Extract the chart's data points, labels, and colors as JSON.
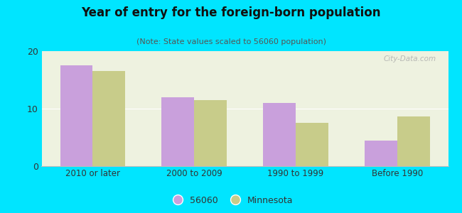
{
  "title": "Year of entry for the foreign-born population",
  "subtitle": "(Note: State values scaled to 56060 population)",
  "categories": [
    "2010 or later",
    "2000 to 2009",
    "1990 to 1999",
    "Before 1990"
  ],
  "values_56060": [
    17.5,
    12.0,
    11.0,
    4.5
  ],
  "values_mn": [
    16.5,
    11.5,
    7.5,
    8.7
  ],
  "color_56060": "#c9a0dc",
  "color_mn": "#c8cc8a",
  "ylim": [
    0,
    20
  ],
  "yticks": [
    0,
    10,
    20
  ],
  "background_outer": "#00e5ff",
  "background_inner": "#eef2e0",
  "bar_width": 0.32,
  "legend_label_56060": "56060",
  "legend_label_mn": "Minnesota",
  "watermark": "City-Data.com"
}
